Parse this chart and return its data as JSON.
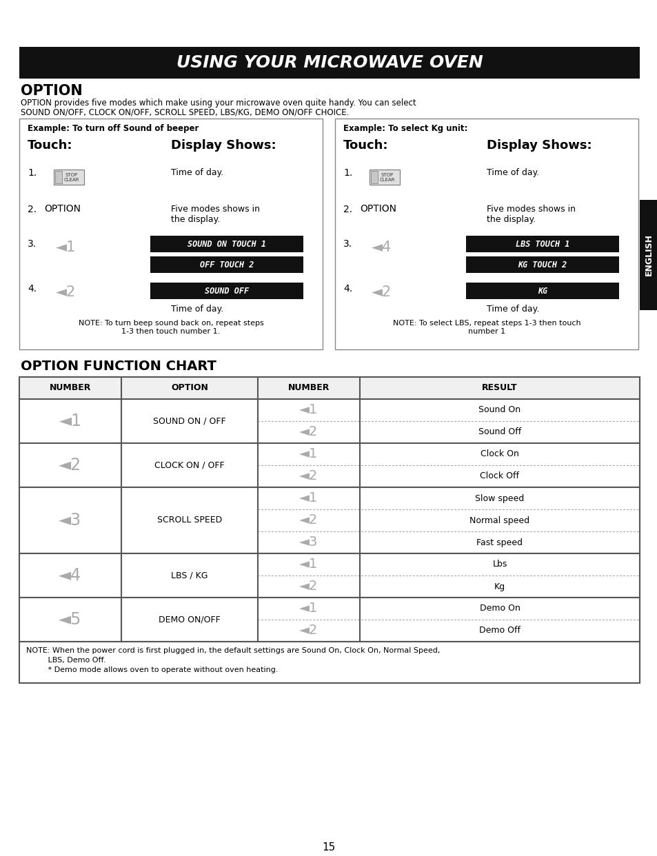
{
  "title": "USING YOUR MICROWAVE OVEN",
  "section1_title": "OPTION",
  "section1_desc_1": "OPTION provides five modes which make using your microwave oven quite handy. You can select",
  "section1_desc_2": "SOUND ON/OFF, CLOCK ON/OFF, SCROLL SPEED, LBS/KG, DEMO ON/OFF CHOICE.",
  "box1_example": "Example: To turn off Sound of beeper",
  "box2_example": "Example: To select Kg unit:",
  "box1_note": "NOTE: To turn beep sound back on, repeat steps\n1-3 then touch number 1.",
  "box2_note": "NOTE: To select LBS, repeat steps 1-3 then touch\nnumber 1",
  "section2_title": "OPTION FUNCTION CHART",
  "chart_headers": [
    "NUMBER",
    "OPTION",
    "NUMBER",
    "RESULT"
  ],
  "chart_note_1": "NOTE: When the power cord is first plugged in, the default settings are Sound On, Clock On, Normal Speed,",
  "chart_note_2": "         LBS, Demo Off.",
  "chart_note_3": "         * Demo mode allows oven to operate without oven heating.",
  "page_number": "15",
  "english_text": "ENGLISH",
  "title_bar_color": "#111111",
  "lcd_color": "#111111",
  "sidebar_color": "#111111",
  "text_color": "#000000",
  "white": "#ffffff",
  "border_color": "#888888",
  "gray_num_color": "#aaaaaa",
  "bg": "#ffffff"
}
